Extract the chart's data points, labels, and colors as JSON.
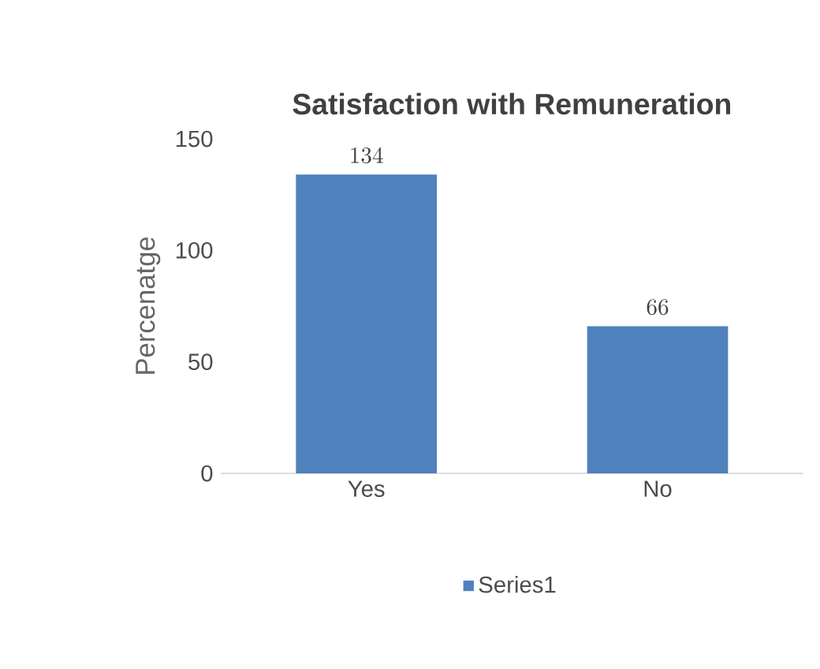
{
  "chart_data": {
    "type": "bar",
    "title": "Satisfaction with Remuneration",
    "ylabel": "Percenatge",
    "categories": [
      "Yes",
      "No"
    ],
    "series": [
      {
        "name": "Series1",
        "color": "#4f81bd",
        "values": [
          134,
          66
        ]
      }
    ],
    "ylim": [
      0,
      150
    ],
    "yticks": [
      0,
      50,
      100,
      150
    ],
    "data_labels": true,
    "legend": "bottom"
  }
}
